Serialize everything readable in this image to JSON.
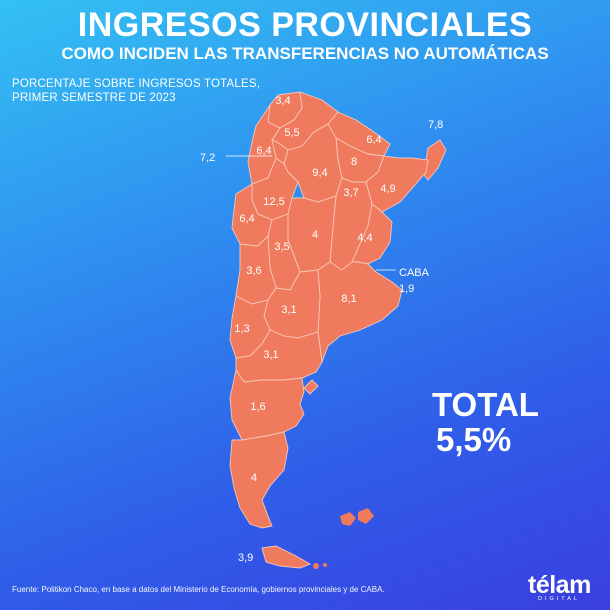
{
  "header": {
    "title": "INGRESOS PROVINCIALES",
    "subtitle": "COMO INCIDEN LAS TRANSFERENCIAS NO AUTOMÁTICAS",
    "caption_line1": "PORCENTAJE SOBRE INGRESOS TOTALES,",
    "caption_line2": "PRIMER SEMESTRE DE 2023"
  },
  "map": {
    "fill_color": "#ef7a5d",
    "values": {
      "jujuy": "3,4",
      "salta": "5,5",
      "formosa": "6,4",
      "misiones": "7,8",
      "catamarca": "6,4",
      "tucuman": "7,2",
      "chaco": "8",
      "santiago_del_estero": "9,4",
      "corrientes": "4,9",
      "la_rioja": "12,5",
      "santa_fe": "3,7",
      "san_juan": "6,4",
      "cordoba": "4",
      "entre_rios": "4,4",
      "san_luis": "3,5",
      "mendoza": "3,6",
      "caba_label": "CABA",
      "caba": "1,9",
      "buenos_aires": "8,1",
      "la_pampa": "3,1",
      "neuquen": "1,3",
      "rio_negro": "3,1",
      "chubut": "1,6",
      "santa_cruz": "4",
      "tierra_del_fuego": "3,9"
    }
  },
  "total": {
    "label": "TOTAL",
    "value": "5,5%"
  },
  "footer": {
    "source": "Fuente: Politikon Chaco, en base a datos del Ministerio de Economía, gobiernos provinciales y de CABA.",
    "logo": "télam",
    "logo_sub": "DIGITAL"
  }
}
